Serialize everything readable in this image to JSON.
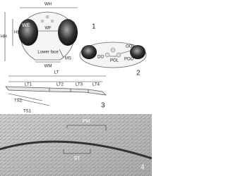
{
  "panels": [
    {
      "number": "1",
      "labels": [
        "WH",
        "HE",
        "HH",
        "WE",
        "WF",
        "Lower face",
        "MS",
        "WM"
      ]
    },
    {
      "number": "2",
      "labels": [
        "OOL",
        "DO",
        "POL",
        "POO"
      ]
    },
    {
      "number": "3",
      "labels": [
        "LT",
        "LT1",
        "LT2",
        "LT3",
        "LT4",
        "TS2",
        "TS1"
      ]
    },
    {
      "number": "4",
      "labels": [
        "PM",
        "ST"
      ]
    }
  ]
}
